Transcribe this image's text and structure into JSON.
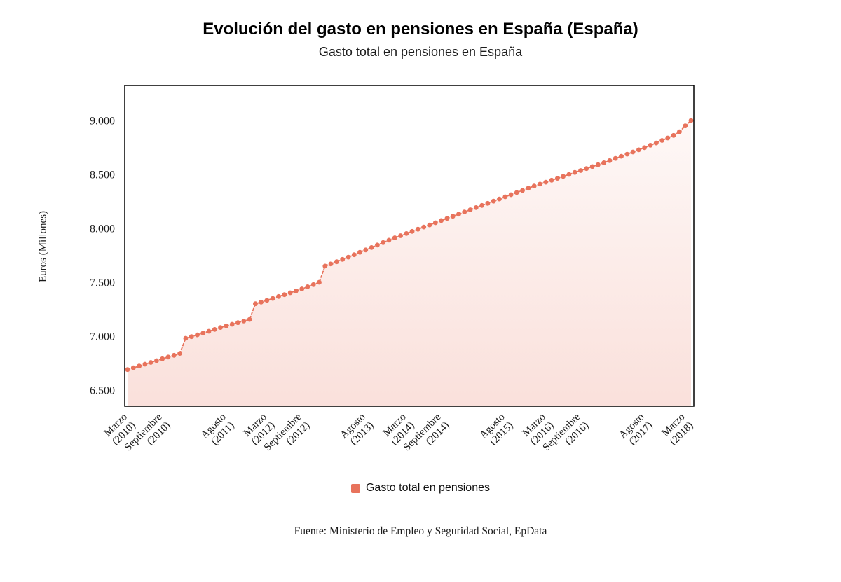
{
  "header": {
    "title": "Evolución del gasto en pensiones en España (España)",
    "subtitle": "Gasto total en pensiones en España"
  },
  "legend": {
    "label": "Gasto total en pensiones",
    "color": "#e8735c"
  },
  "source_note": "Fuente: Ministerio de Empleo y Seguridad Social, EpData",
  "chart_data": {
    "type": "line",
    "title": "Gasto total en pensiones en España",
    "series_name": "Gasto total en pensiones",
    "color": "#e8735c",
    "marker": "circle",
    "line_style": "dashed",
    "area_fill": true,
    "legend_position": "bottom",
    "grid": false,
    "ylabel": "Euros (Millones)",
    "ylim": [
      6350,
      9325
    ],
    "y_ticks": [
      6500,
      7000,
      7500,
      8000,
      8500,
      9000
    ],
    "y_tick_labels": [
      "6.500",
      "7.000",
      "7.500",
      "8.000",
      "8.500",
      "9.000"
    ],
    "x": [
      "2010-03",
      "2010-04",
      "2010-05",
      "2010-06",
      "2010-07",
      "2010-08",
      "2010-09",
      "2010-10",
      "2010-11",
      "2010-12",
      "2011-01",
      "2011-02",
      "2011-03",
      "2011-04",
      "2011-05",
      "2011-06",
      "2011-07",
      "2011-08",
      "2011-09",
      "2011-10",
      "2011-11",
      "2011-12",
      "2012-01",
      "2012-02",
      "2012-03",
      "2012-04",
      "2012-05",
      "2012-06",
      "2012-07",
      "2012-08",
      "2012-09",
      "2012-10",
      "2012-11",
      "2012-12",
      "2013-01",
      "2013-02",
      "2013-03",
      "2013-04",
      "2013-05",
      "2013-06",
      "2013-07",
      "2013-08",
      "2013-09",
      "2013-10",
      "2013-11",
      "2013-12",
      "2014-01",
      "2014-02",
      "2014-03",
      "2014-04",
      "2014-05",
      "2014-06",
      "2014-07",
      "2014-08",
      "2014-09",
      "2014-10",
      "2014-11",
      "2014-12",
      "2015-01",
      "2015-02",
      "2015-03",
      "2015-04",
      "2015-05",
      "2015-06",
      "2015-07",
      "2015-08",
      "2015-09",
      "2015-10",
      "2015-11",
      "2015-12",
      "2016-01",
      "2016-02",
      "2016-03",
      "2016-04",
      "2016-05",
      "2016-06",
      "2016-07",
      "2016-08",
      "2016-09",
      "2016-10",
      "2016-11",
      "2016-12",
      "2017-01",
      "2017-02",
      "2017-03",
      "2017-04",
      "2017-05",
      "2017-06",
      "2017-07",
      "2017-08",
      "2017-09",
      "2017-10",
      "2017-11",
      "2017-12",
      "2018-01",
      "2018-02",
      "2018-03",
      "2018-04"
    ],
    "values": [
      6690,
      6706,
      6722,
      6740,
      6756,
      6772,
      6790,
      6806,
      6822,
      6840,
      6980,
      6995,
      7012,
      7028,
      7045,
      7062,
      7080,
      7095,
      7110,
      7125,
      7140,
      7155,
      7300,
      7315,
      7332,
      7350,
      7368,
      7385,
      7402,
      7420,
      7438,
      7458,
      7478,
      7500,
      7650,
      7670,
      7690,
      7712,
      7733,
      7755,
      7778,
      7800,
      7822,
      7845,
      7868,
      7890,
      7912,
      7932,
      7952,
      7972,
      7992,
      8012,
      8032,
      8052,
      8072,
      8092,
      8112,
      8132,
      8152,
      8172,
      8192,
      8212,
      8232,
      8252,
      8272,
      8292,
      8312,
      8332,
      8352,
      8372,
      8392,
      8410,
      8428,
      8446,
      8464,
      8482,
      8500,
      8518,
      8536,
      8554,
      8572,
      8590,
      8608,
      8628,
      8648,
      8668,
      8688,
      8708,
      8728,
      8748,
      8770,
      8792,
      8815,
      8838,
      8862,
      8895,
      8950,
      9000
    ],
    "x_ticks": [
      {
        "i": 0,
        "line1": "Marzo",
        "line2": "(2010)"
      },
      {
        "i": 6,
        "line1": "Septiembre",
        "line2": "(2010)"
      },
      {
        "i": 17,
        "line1": "Agosto",
        "line2": "(2011)"
      },
      {
        "i": 24,
        "line1": "Marzo",
        "line2": "(2012)"
      },
      {
        "i": 30,
        "line1": "Septiembre",
        "line2": "(2012)"
      },
      {
        "i": 41,
        "line1": "Agosto",
        "line2": "(2013)"
      },
      {
        "i": 48,
        "line1": "Marzo",
        "line2": "(2014)"
      },
      {
        "i": 54,
        "line1": "Septiembre",
        "line2": "(2014)"
      },
      {
        "i": 65,
        "line1": "Agosto",
        "line2": "(2015)"
      },
      {
        "i": 72,
        "line1": "Marzo",
        "line2": "(2016)"
      },
      {
        "i": 78,
        "line1": "Septiembre",
        "line2": "(2016)"
      },
      {
        "i": 89,
        "line1": "Agosto",
        "line2": "(2017)"
      },
      {
        "i": 96,
        "line1": "Marzo",
        "line2": "(2018)"
      }
    ]
  }
}
